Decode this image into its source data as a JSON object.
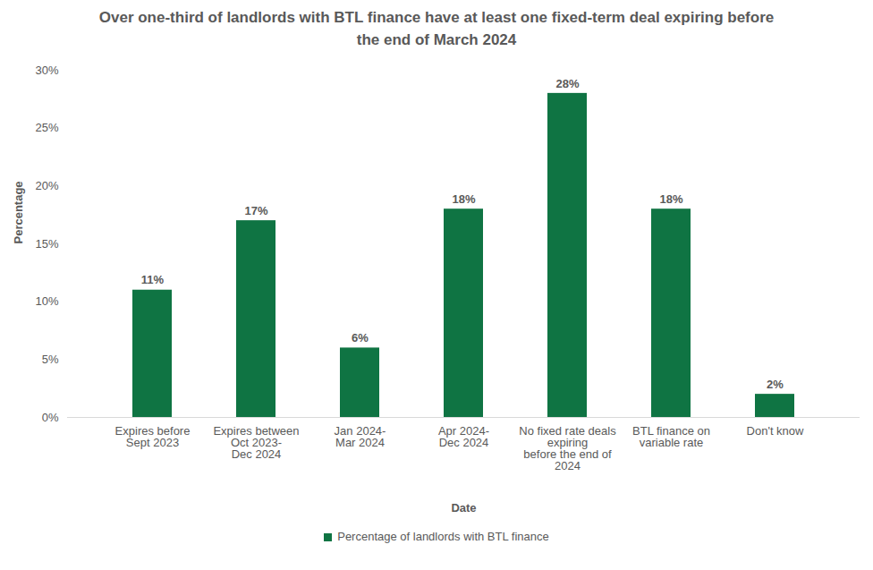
{
  "chart_data": {
    "type": "bar",
    "title": "Over one-third of landlords with BTL finance have at least one fixed-term deal expiring before the end of March 2024",
    "x_label": "Date",
    "y_label": "Percentage",
    "categories": [
      "Expires before\nSept 2023",
      "Expires between\nOct 2023-\nDec 2024",
      "Jan 2024-\nMar 2024",
      "Apr 2024-\nDec 2024",
      "No fixed rate deals\nexpiring\nbefore the end of\n2024",
      "BTL finance on\nvariable rate",
      "Don't know"
    ],
    "series": [
      {
        "name": "Percentage of landlords with BTL finance",
        "color": "#0F7443",
        "values": [
          11,
          17,
          6,
          18,
          28,
          18,
          2
        ],
        "value_labels": [
          "11%",
          "17%",
          "6%",
          "18%",
          "28%",
          "18%",
          "2%"
        ]
      }
    ],
    "ylim": [
      0,
      30
    ],
    "yticks": [
      {
        "value": 0,
        "label": "0%"
      },
      {
        "value": 5,
        "label": "5%"
      },
      {
        "value": 10,
        "label": "10%"
      },
      {
        "value": 15,
        "label": "15%"
      },
      {
        "value": 20,
        "label": "20%"
      },
      {
        "value": 25,
        "label": "25%"
      },
      {
        "value": 30,
        "label": "30%"
      }
    ],
    "grid": false,
    "data_labels": true,
    "legend": "bottom"
  }
}
